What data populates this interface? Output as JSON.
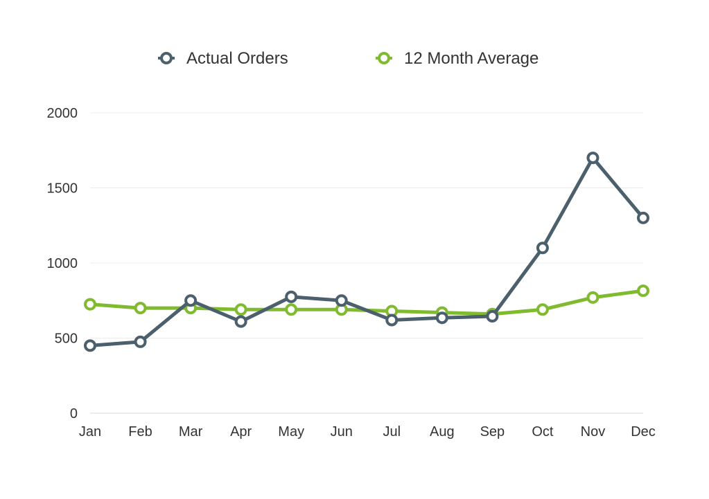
{
  "chart_data": {
    "type": "line",
    "title": "",
    "xlabel": "",
    "ylabel": "",
    "categories": [
      "Jan",
      "Feb",
      "Mar",
      "Apr",
      "May",
      "Jun",
      "Jul",
      "Aug",
      "Sep",
      "Oct",
      "Nov",
      "Dec"
    ],
    "ylim": [
      0,
      2000
    ],
    "yticks": [
      "0",
      "500",
      "1000",
      "1500",
      "2000"
    ],
    "grid": true,
    "legend_position": "top-center",
    "series": [
      {
        "name": "Actual Orders",
        "color": "#4b5f6c",
        "values": [
          450,
          475,
          750,
          610,
          775,
          750,
          620,
          635,
          645,
          1100,
          1700,
          1300
        ]
      },
      {
        "name": "12 Month Average",
        "color": "#80bb2f",
        "values": [
          725,
          700,
          700,
          690,
          690,
          690,
          680,
          670,
          660,
          690,
          770,
          815
        ]
      }
    ]
  }
}
